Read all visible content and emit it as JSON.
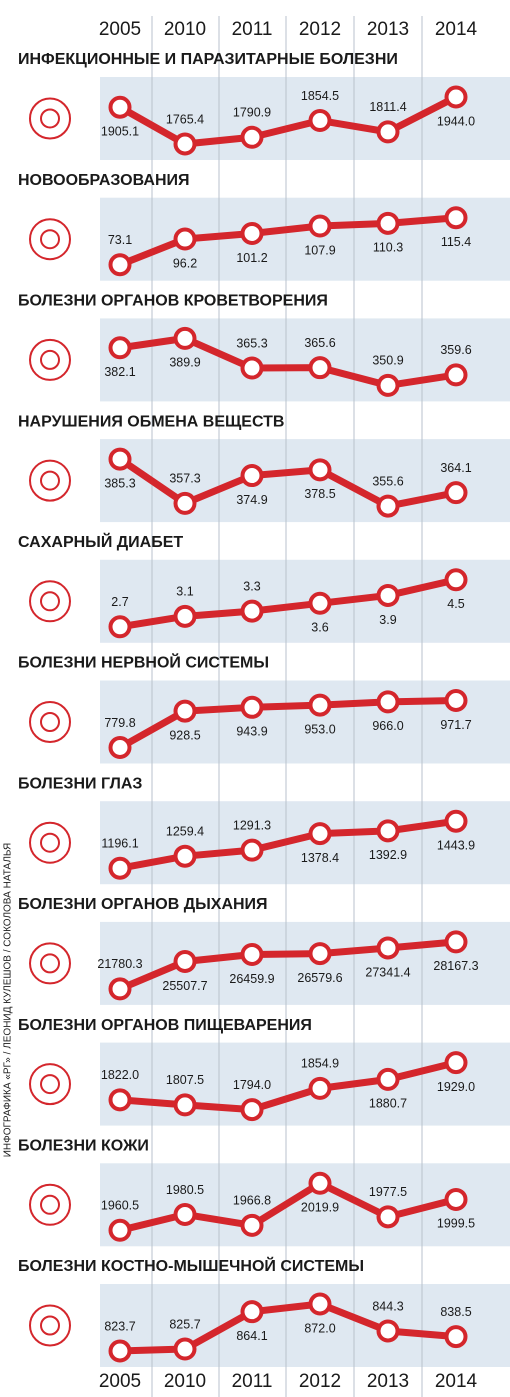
{
  "years": [
    "2005",
    "2010",
    "2011",
    "2012",
    "2013",
    "2014"
  ],
  "credit": "ИНФОГРАФИКА «РГ» / ЛЕОНИД КУЛЕШОВ / СОКОЛОВА НАТАЛЬЯ",
  "color": "#d4262c",
  "chart_data": [
    {
      "type": "line",
      "title": "ИНФЕКЦИОННЫЕ И ПАРАЗИТАРНЫЕ БОЛЕЗНИ",
      "values": [
        1905.1,
        1765.4,
        1790.9,
        1854.5,
        1811.4,
        1944.0
      ],
      "value_labels": [
        "1905.1",
        "1765.4",
        "1790.9",
        "1854.5",
        "1811.4",
        "1944.0"
      ]
    },
    {
      "type": "line",
      "title": "НОВООБРАЗОВАНИЯ",
      "values": [
        73.1,
        96.2,
        101.2,
        107.9,
        110.3,
        115.4
      ],
      "value_labels": [
        "73.1",
        "96.2",
        "101.2",
        "107.9",
        "110.3",
        "115.4"
      ]
    },
    {
      "type": "line",
      "title": "БОЛЕЗНИ ОРГАНОВ КРОВЕТВОРЕНИЯ",
      "values": [
        382.1,
        389.9,
        365.3,
        365.6,
        350.9,
        359.6
      ],
      "value_labels": [
        "382.1",
        "389.9",
        "365.3",
        "365.6",
        "350.9",
        "359.6"
      ]
    },
    {
      "type": "line",
      "title": "НАРУШЕНИЯ ОБМЕНА ВЕЩЕСТВ",
      "values": [
        385.3,
        357.3,
        374.9,
        378.5,
        355.6,
        364.1
      ],
      "value_labels": [
        "385.3",
        "357.3",
        "374.9",
        "378.5",
        "355.6",
        "364.1"
      ]
    },
    {
      "type": "line",
      "title": "САХАРНЫЙ ДИАБЕТ",
      "values": [
        2.7,
        3.1,
        3.3,
        3.6,
        3.9,
        4.5
      ],
      "value_labels": [
        "2.7",
        "3.1",
        "3.3",
        "3.6",
        "3.9",
        "4.5"
      ]
    },
    {
      "type": "line",
      "title": "БОЛЕЗНИ НЕРВНОЙ СИСТЕМЫ",
      "values": [
        779.8,
        928.5,
        943.9,
        953.0,
        966.0,
        971.7
      ],
      "value_labels": [
        "779.8",
        "928.5",
        "943.9",
        "953.0",
        "966.0",
        "971.7"
      ]
    },
    {
      "type": "line",
      "title": "БОЛЕЗНИ ГЛАЗ",
      "values": [
        1196.1,
        1259.4,
        1291.3,
        1378.4,
        1392.9,
        1443.9
      ],
      "value_labels": [
        "1196.1",
        "1259.4",
        "1291.3",
        "1378.4",
        "1392.9",
        "1443.9"
      ]
    },
    {
      "type": "line",
      "title": "БОЛЕЗНИ ОРГАНОВ ДЫХАНИЯ",
      "values": [
        21780.3,
        25507.7,
        26459.9,
        26579.6,
        27341.4,
        28167.3
      ],
      "value_labels": [
        "21780.3",
        "25507.7",
        "26459.9",
        "26579.6",
        "27341.4",
        "28167.3"
      ]
    },
    {
      "type": "line",
      "title": "БОЛЕЗНИ ОРГАНОВ ПИЩЕВАРЕНИЯ",
      "values": [
        1822.0,
        1807.5,
        1794.0,
        1854.9,
        1880.7,
        1929.0
      ],
      "value_labels": [
        "1822.0",
        "1807.5",
        "1794.0",
        "1854.9",
        "1880.7",
        "1929.0"
      ]
    },
    {
      "type": "line",
      "title": "БОЛЕЗНИ КОЖИ",
      "values": [
        1960.5,
        1980.5,
        1966.8,
        2019.9,
        1977.5,
        1999.5
      ],
      "value_labels": [
        "1960.5",
        "1980.5",
        "1966.8",
        "2019.9",
        "1977.5",
        "1999.5"
      ]
    },
    {
      "type": "line",
      "title": "БОЛЕЗНИ КОСТНО-МЫШЕЧНОЙ СИСТЕМЫ",
      "values": [
        823.7,
        825.7,
        864.1,
        872.0,
        844.3,
        838.5
      ],
      "value_labels": [
        "823.7",
        "825.7",
        "864.1",
        "872.0",
        "844.3",
        "838.5"
      ]
    }
  ]
}
